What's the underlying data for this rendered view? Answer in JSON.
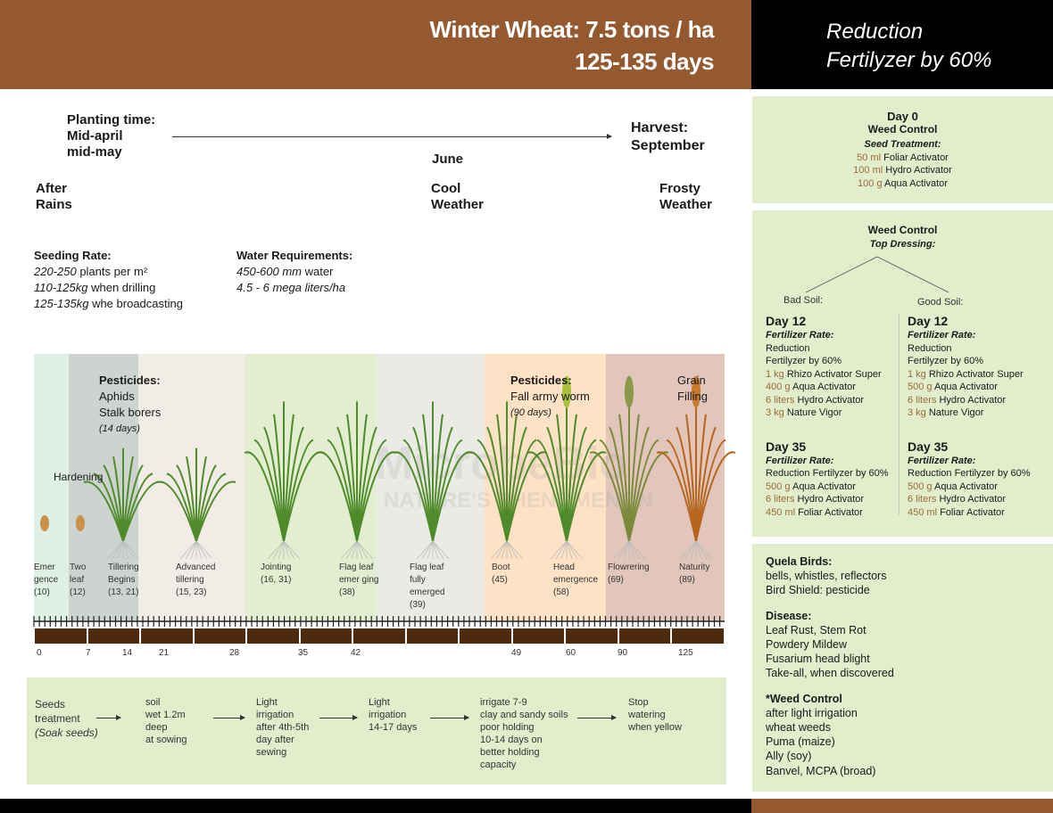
{
  "header": {
    "title": "Winter Wheat: 7.5 tons / ha",
    "duration": "125-135 days",
    "right_line1": "Reduction",
    "right_line2": "Fertilyzer by 60%"
  },
  "timeline": {
    "planting": [
      "Planting time:",
      "Mid-april",
      "mid-may"
    ],
    "june": "June",
    "harvest": [
      "Harvest:",
      "September"
    ],
    "after": [
      "After",
      "Rains"
    ],
    "cool": [
      "Cool",
      "Weather"
    ],
    "frosty": [
      "Frosty",
      "Weather"
    ]
  },
  "seeding": {
    "title": "Seeding Rate:",
    "l1a": "220-250",
    "l1b": " plants per m²",
    "l2a": "110-125kg",
    "l2b": " when drilling",
    "l3a": "125-135kg",
    "l3b": " whe broadcasting"
  },
  "water": {
    "title": "Water Requirements:",
    "l1a": "450-600 mm",
    "l1b": " water",
    "l2": "4.5 - 6 mega liters/ha"
  },
  "chart": {
    "pest1": {
      "title": "Pesticides:",
      "l1": "Aphids",
      "l2": "Stalk borers",
      "l3": "(14 days)"
    },
    "pest2": {
      "title": "Pesticides:",
      "l1": "Fall army worm",
      "l2": "(90 days)"
    },
    "grain": [
      "Grain",
      "Filling"
    ],
    "hardening": "Hardening",
    "watermark": [
      "MicrobeBio",
      "NATURE'S PHENOMENON"
    ],
    "stages": [
      [
        "Emer",
        "gence",
        "(10)"
      ],
      [
        "Two",
        "leaf",
        "(12)"
      ],
      [
        "Tillering",
        "Begins",
        "(13, 21)"
      ],
      [
        "Advanced",
        "tillering",
        "(15, 23)"
      ],
      [
        "Jointing",
        "(16, 31)"
      ],
      [
        "Flag leaf",
        "emer ging",
        "(38)"
      ],
      [
        "Flag leaf",
        "fully",
        "emerged",
        "(39)"
      ],
      [
        "Boot",
        "(45)"
      ],
      [
        "Head",
        "emergence",
        "(58)"
      ],
      [
        "Flowrering",
        "(69)"
      ],
      [
        "Naturity",
        "(89)"
      ]
    ],
    "days": [
      "0",
      "7",
      "14",
      "21",
      "28",
      "35",
      "42",
      "49",
      "60",
      "90",
      "125"
    ],
    "band_colors": [
      "#dff0e6",
      "#cdd4d0",
      "#f1ede6",
      "#e2eecf",
      "#ebebe6",
      "#fde2c6",
      "#e2c6bc"
    ]
  },
  "irrigation": [
    {
      "lines": [
        "Seeds",
        "treatment"
      ],
      "italic": "(Soak seeds)"
    },
    {
      "lines": [
        "soil",
        "wet 1.2m",
        "deep",
        "at sowing"
      ]
    },
    {
      "lines": [
        "Light",
        "irrigation",
        "after 4th-5th",
        "day after",
        "sewing"
      ]
    },
    {
      "lines": [
        "Light",
        "irrigation",
        "14-17 days"
      ]
    },
    {
      "lines": [
        "irrigate 7-9",
        "clay and sandy soils",
        "poor holding",
        "10-14 days on",
        "better holding",
        "capacity"
      ]
    },
    {
      "lines": [
        "Stop",
        "watering",
        "when yellow"
      ]
    }
  ],
  "right": {
    "day0": {
      "title": "Day 0",
      "sub": "Weed Control",
      "seed": "Seed Treatment:",
      "items": [
        [
          "50 ml",
          " Foliar Activator"
        ],
        [
          "100 ml",
          " Hydro Activator"
        ],
        [
          "100 g",
          " Aqua Activator"
        ]
      ]
    },
    "top": {
      "title": "Weed Control",
      "sub": "Top Dressing:",
      "bad": "Bad Soil:",
      "good": "Good Soil:"
    },
    "bad": {
      "d12": "Day 12",
      "rate": "Fertilizer Rate:",
      "r1": "Reduction",
      "r2": "Fertilyzer by 60%",
      "items12": [
        [
          "1 kg",
          " Rhizo Activator Super"
        ],
        [
          "400 g",
          " Aqua Activator"
        ],
        [
          "6 liters",
          " Hydro Activator"
        ],
        [
          "3 kg",
          " Nature Vigor"
        ]
      ],
      "d35": "Day 35",
      "rate35": "Fertilizer Rate:",
      "r35": "Reduction Fertilyzer by 60%",
      "items35": [
        [
          "500 g",
          " Aqua Activator"
        ],
        [
          "6 liters",
          " Hydro Activator"
        ],
        [
          "450 ml",
          " Foliar Activator"
        ]
      ]
    },
    "good": {
      "d12": "Day 12",
      "rate": "Fertilizer Rate:",
      "r1": "Reduction",
      "r2": "Fertilyzer by 60%",
      "items12": [
        [
          "1 kg",
          " Rhizo Activator Super"
        ],
        [
          "500 g",
          " Aqua Activator"
        ],
        [
          "6 liters",
          " Hydro Activator"
        ],
        [
          "3 kg",
          " Nature Vigor"
        ]
      ],
      "d35": "Day 35",
      "rate35": "Fertilizer Rate:",
      "r35": "Reduction Fertilyzer by 60%",
      "items35": [
        [
          "500 g",
          " Aqua Activator"
        ],
        [
          "6 liters",
          " Hydro Activator"
        ],
        [
          "450 ml",
          " Foliar Activator"
        ]
      ]
    },
    "quela": {
      "title": "Quela Birds:",
      "l1": "bells, whistles, reflectors",
      "l2": "Bird Shield: pesticide"
    },
    "disease": {
      "title": "Disease:",
      "items": [
        "Leaf Rust, Stem Rot",
        "Powdery Mildew",
        "Fusarium head blight",
        "Take-all, when discovered"
      ]
    },
    "weed": {
      "title": "*Weed Control",
      "items": [
        "after light irrigation",
        "wheat weeds",
        "Puma (maize)",
        "Ally (soy)",
        "Banvel, MCPA (broad)"
      ]
    }
  }
}
